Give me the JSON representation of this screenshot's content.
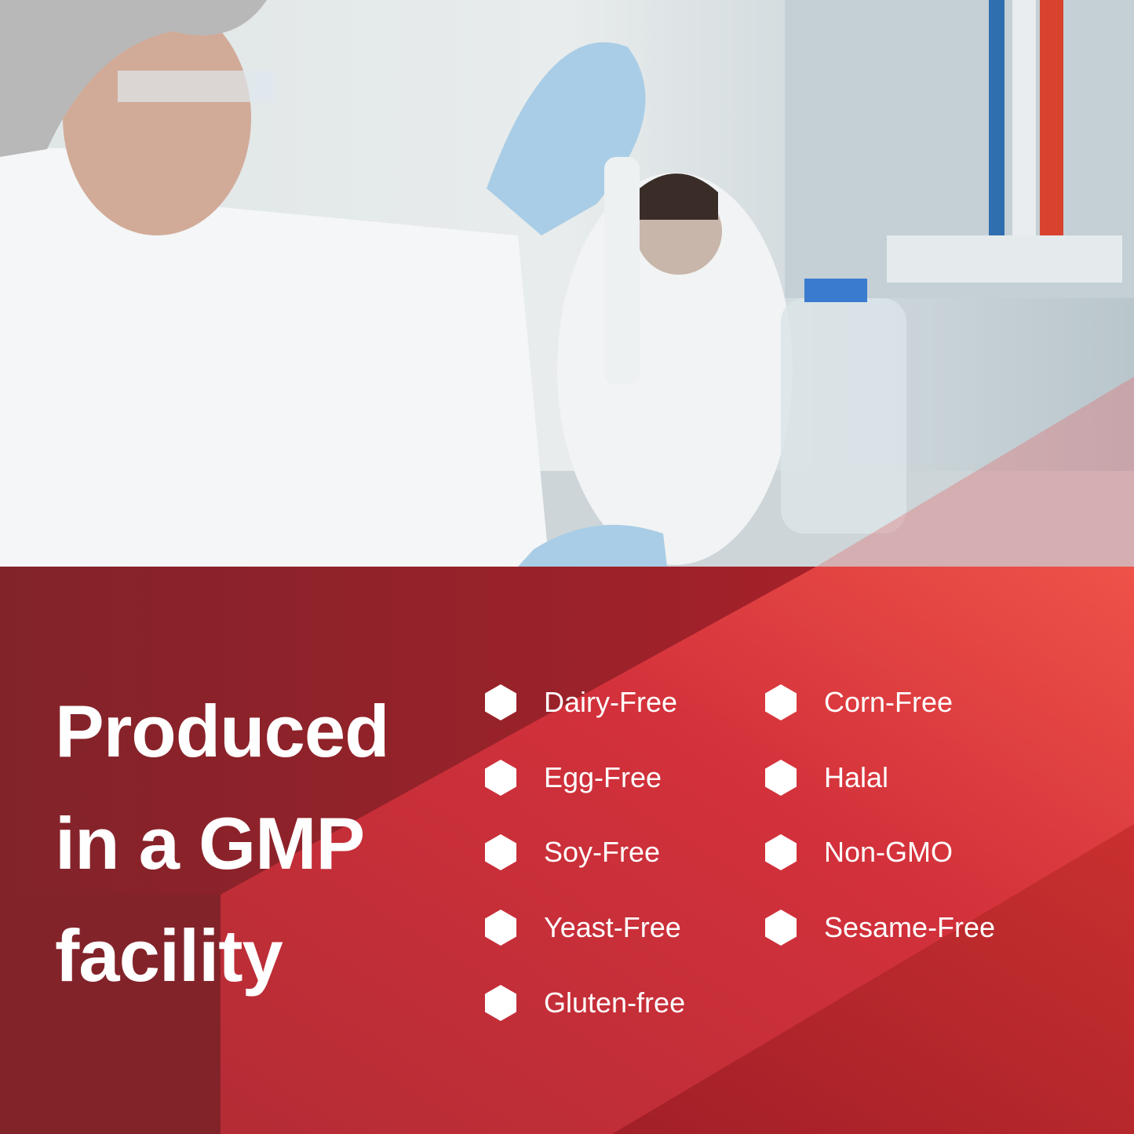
{
  "photo": {
    "subject": "scientists working in laboratory with pipette"
  },
  "headline": {
    "line1": "Produced",
    "line2": "in a GMP",
    "line3": "facility"
  },
  "features": {
    "left": [
      "Dairy-Free",
      "Egg-Free",
      "Soy-Free",
      "Yeast-Free",
      "Gluten-free"
    ],
    "right": [
      "Corn-Free",
      "Halal",
      "Non-GMO",
      "Sesame-Free"
    ]
  },
  "bullet_icon": "hexagon-icon",
  "colors": {
    "dark_red": "#82232a",
    "red": "#c8303a",
    "bright_red": "#e84a45",
    "text": "#ffffff"
  }
}
